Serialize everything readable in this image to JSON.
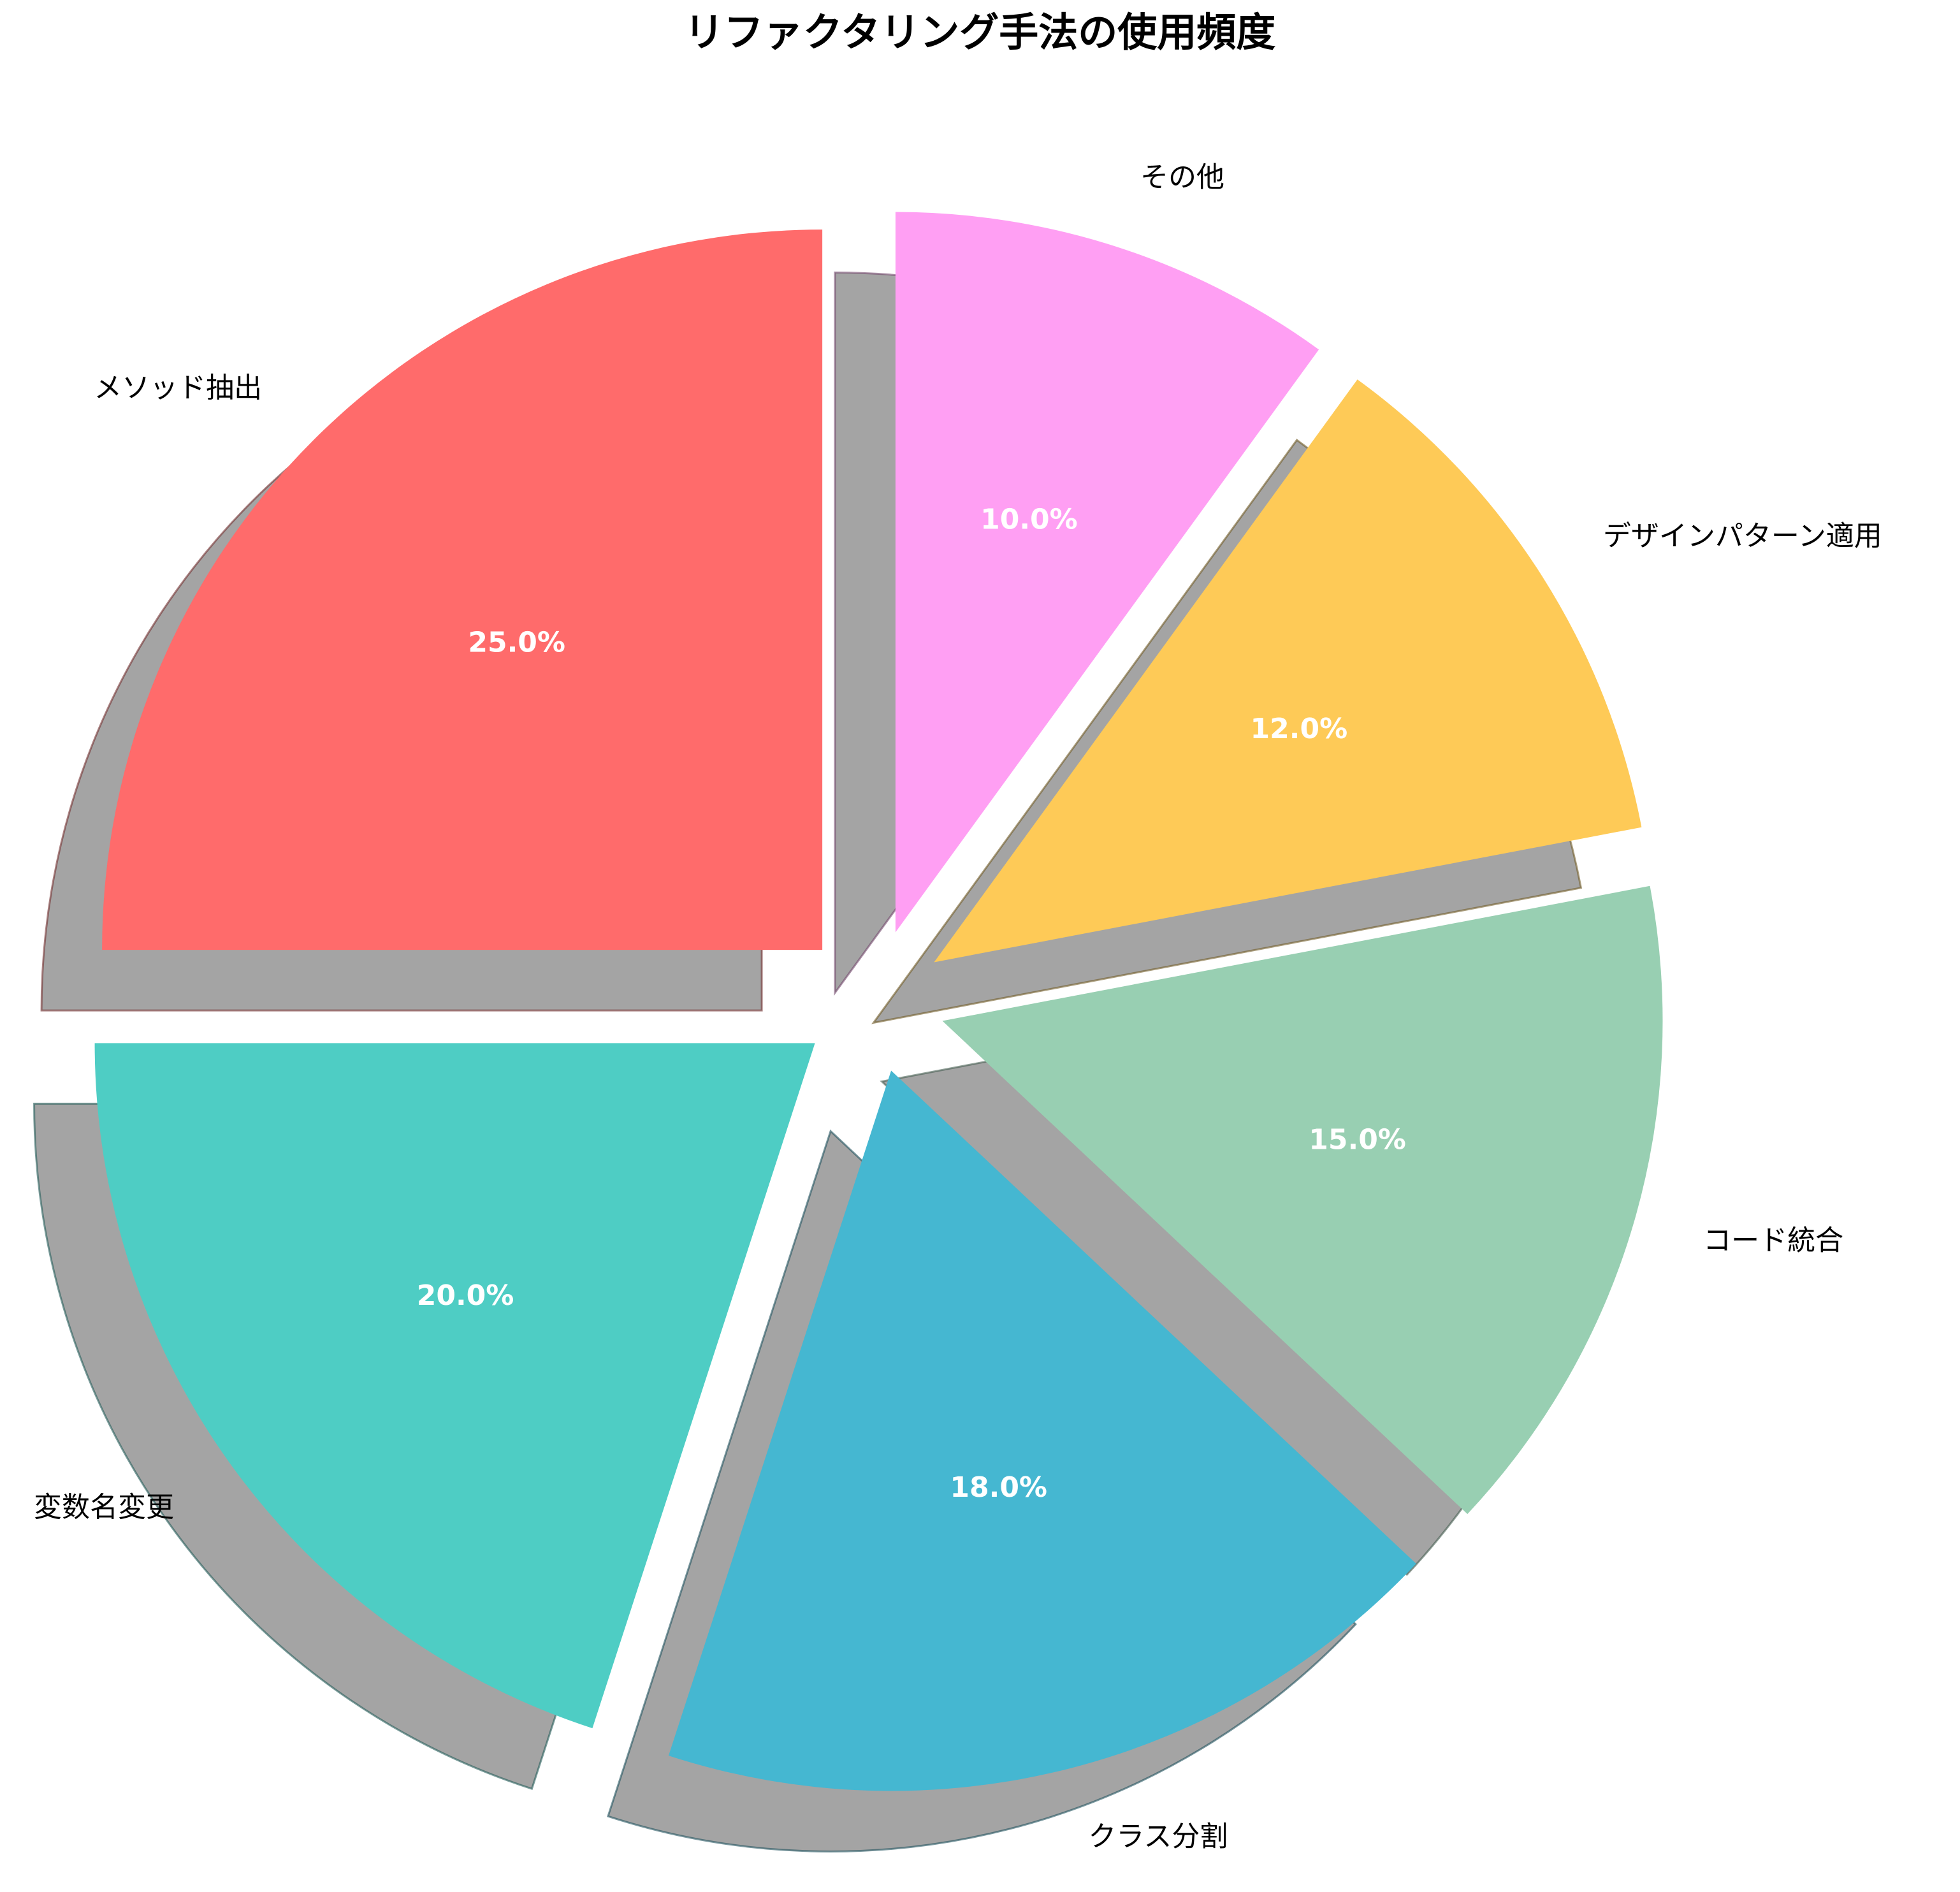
{
  "chart_data": {
    "type": "pie",
    "title": "リファクタリング手法の使用頻度",
    "categories": [
      "メソッド抽出",
      "変数名変更",
      "クラス分割",
      "コード統合",
      "デザインパターン適用",
      "その他"
    ],
    "values": [
      25,
      20,
      18,
      15,
      12,
      10
    ],
    "percent_labels": [
      "25.0%",
      "20.0%",
      "18.0%",
      "15.0%",
      "12.0%",
      "10.0%"
    ],
    "colors": [
      "#FF6B6B",
      "#4ECDC4",
      "#45B7D1",
      "#98CFB2",
      "#FECA57",
      "#FF9FF3"
    ],
    "explode": [
      0.1,
      0.1,
      0.1,
      0.1,
      0.1,
      0.1
    ],
    "start_angle_deg": 90,
    "direction": "counterclockwise",
    "shadow": true,
    "legend": "none"
  }
}
